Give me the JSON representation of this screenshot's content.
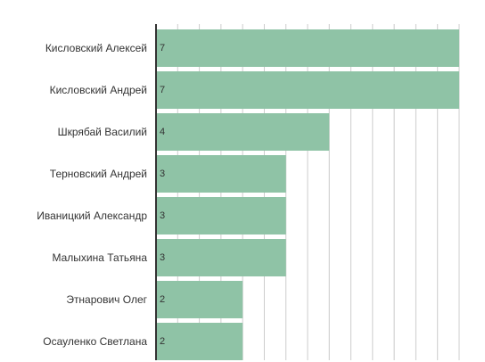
{
  "colors": {
    "bar": "#8fc3a6",
    "grid": "#cccccc",
    "axis": "#333333",
    "text": "#333333"
  },
  "chart_data": {
    "type": "bar",
    "orientation": "horizontal",
    "categories": [
      "Кисловский Алексей",
      "Кисловский Андрей",
      "Шкрябай Василий",
      "Терновский Андрей",
      "Иваницкий Александр",
      "Малыхина Татьяна",
      "Этнарович Олег",
      "Осауленко Светлана"
    ],
    "values": [
      7,
      7,
      4,
      3,
      3,
      3,
      2,
      2
    ],
    "value_labels": [
      "7",
      "7",
      "4",
      "3",
      "3",
      "3",
      "2",
      "2"
    ],
    "xlim": [
      0,
      7
    ],
    "grid_step": 0.5,
    "grid": true,
    "legend": false
  }
}
